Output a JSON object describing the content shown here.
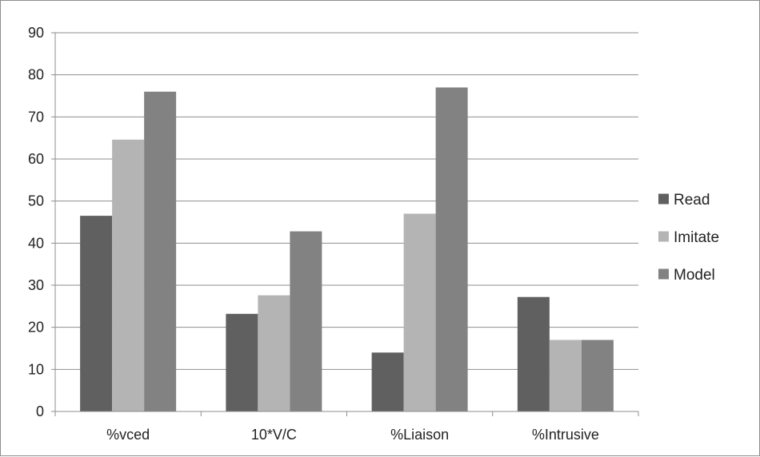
{
  "chart_data": {
    "type": "bar",
    "title": "",
    "xlabel": "",
    "ylabel": "",
    "categories": [
      "%vced",
      "10*V/C",
      "%Liaison",
      "%Intrusive"
    ],
    "series": [
      {
        "name": "Read",
        "color": "#606060",
        "values": [
          46.5,
          23.2,
          14.0,
          27.2
        ]
      },
      {
        "name": "Imitate",
        "color": "#b4b4b4",
        "values": [
          64.6,
          27.6,
          47.0,
          17.0
        ]
      },
      {
        "name": "Model",
        "color": "#828282",
        "values": [
          76.0,
          42.8,
          77.0,
          17.0
        ]
      }
    ],
    "ylim": [
      0,
      90
    ],
    "yticks": [
      "0",
      "10",
      "20",
      "30",
      "40",
      "50",
      "60",
      "70",
      "80",
      "90"
    ],
    "grid": true,
    "legend_position": "right"
  }
}
